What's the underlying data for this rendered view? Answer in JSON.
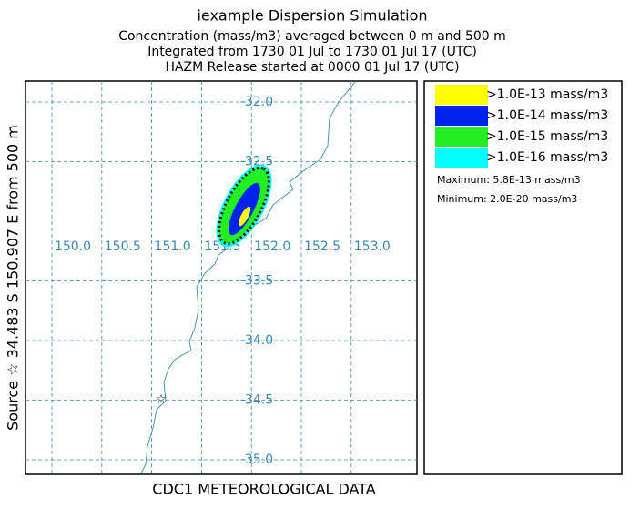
{
  "title": "iexample Dispersion Simulation",
  "subtitle_lines": [
    "Concentration  (mass/m3) averaged between     0 m and   500 m",
    "Integrated from 1730 01 Jul to 1730 01 Jul 17 (UTC)",
    "HAZM Release started at 0000 01 Jul 17 (UTC)"
  ],
  "source_label": "Source ☆ 34.483  S 150.907  E     from  500 m",
  "met_label": "CDC1 METEOROLOGICAL DATA",
  "lat_ticks": [
    {
      "value": -32.0,
      "label": "-32.0"
    },
    {
      "value": -32.5,
      "label": "-32.5"
    },
    {
      "value": -33.5,
      "label": "-33.5"
    },
    {
      "value": -34.0,
      "label": "-34.0"
    },
    {
      "value": -34.5,
      "label": "-34.5"
    },
    {
      "value": -35.0,
      "label": "-35.0"
    }
  ],
  "lon_ticks": [
    {
      "value": 150.0,
      "label": "150.0"
    },
    {
      "value": 150.5,
      "label": "150.5"
    },
    {
      "value": 151.0,
      "label": "151.0"
    },
    {
      "value": 151.5,
      "label": "151.5"
    },
    {
      "value": 152.0,
      "label": "152.0"
    },
    {
      "value": 152.5,
      "label": "152.5"
    },
    {
      "value": 153.0,
      "label": "153.0"
    }
  ],
  "legend": [
    {
      "label": ">1.0E-13 mass/m3",
      "color": "#ffff00"
    },
    {
      "label": ">1.0E-14 mass/m3",
      "color": "#0022ee"
    },
    {
      "label": ">1.0E-15 mass/m3",
      "color": "#22ee22"
    },
    {
      "label": ">1.0E-16 mass/m3",
      "color": "#00ffff"
    }
  ],
  "maximum": "Maximum: 5.8E-13 mass/m3",
  "minimum": "Minimum: 2.0E-20 mass/m3"
}
